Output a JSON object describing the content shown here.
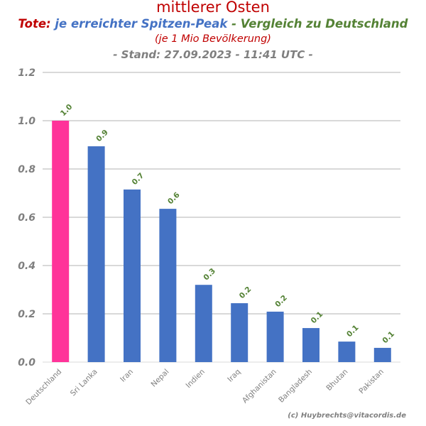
{
  "header": {
    "title": "mittlerer Osten",
    "sub_part1": "Tote:",
    "sub_part2": " je erreichter Spitzen-Peak",
    "sub_part3": " - Vergleich zu Deutschland",
    "per": "(je 1 Mio Bevölkerung)",
    "stand": "- Stand: 27.09.2023 - 11:41 UTC -"
  },
  "credit": "(c) Huybrechts@vitacordis.de",
  "colors": {
    "red": "#c00000",
    "blue": "#4472c4",
    "green": "#548235",
    "pink": "#ff3399",
    "grid": "#d9d9d9",
    "axis_text": "#7f7f7f"
  },
  "chart_data": {
    "type": "bar",
    "title": "mittlerer Osten",
    "categories": [
      "Deutschland",
      "Sri Lanka",
      "Iran",
      "Nepal",
      "Indien",
      "Iraq",
      "Afghanistan",
      "Bangladesh",
      "Bhutan",
      "Pakistan"
    ],
    "values": [
      1.0,
      0.894,
      0.715,
      0.635,
      0.32,
      0.244,
      0.209,
      0.141,
      0.085,
      0.059
    ],
    "data_labels": [
      "1.0",
      "0.9",
      "0.7",
      "0.6",
      "0.3",
      "0.2",
      "0.2",
      "0.1",
      "0.1",
      "0.1"
    ],
    "highlight": "Deutschland",
    "ylim": [
      0,
      1.2
    ],
    "yticks": [
      "0.0",
      "0.2",
      "0.4",
      "0.6",
      "0.8",
      "1.0",
      "1.2"
    ],
    "grid": true,
    "xlabel": "",
    "ylabel": ""
  }
}
